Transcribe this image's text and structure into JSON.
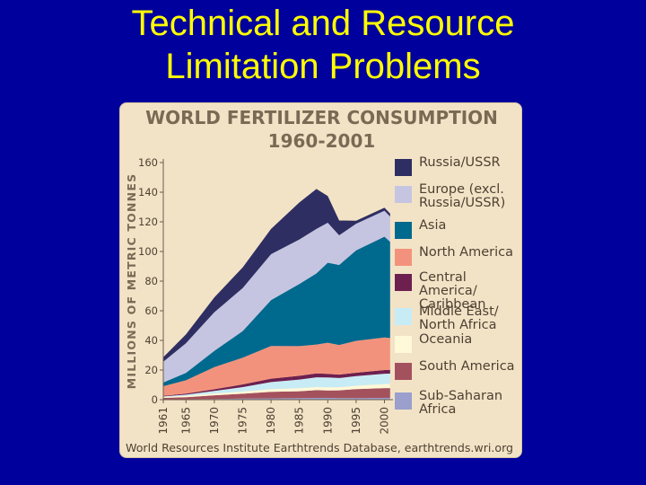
{
  "slide": {
    "title_line1": "Technical and Resource",
    "title_line2": "Limitation Problems"
  },
  "figure": {
    "source": "World Resources Institute Earthtrends Database, earthtrends.wri.org"
  },
  "chart_data": {
    "type": "area",
    "stacked": true,
    "title": "WORLD FERTILIZER CONSUMPTION",
    "subtitle": "1960-2001",
    "xlabel": "",
    "ylabel": "MILLIONS OF METRIC TONNES",
    "ylim": [
      0,
      160
    ],
    "yticks": [
      0,
      20,
      40,
      60,
      80,
      100,
      120,
      140,
      160
    ],
    "xticks": [
      1961,
      1965,
      1970,
      1975,
      1980,
      1985,
      1990,
      1995,
      2000
    ],
    "x": [
      1961,
      1965,
      1970,
      1975,
      1980,
      1985,
      1988,
      1990,
      1992,
      1995,
      2000,
      2001
    ],
    "series": [
      {
        "name": "Sub-Saharan Africa",
        "color": "#9a9fcd",
        "values": [
          0.2,
          0.3,
          0.5,
          0.7,
          0.9,
          1.1,
          1.2,
          1.2,
          1.1,
          1.1,
          1.2,
          1.2
        ]
      },
      {
        "name": "South America",
        "color": "#a4515e",
        "values": [
          1.0,
          1.4,
          2.5,
          3.3,
          4.4,
          4.6,
          5.2,
          5.0,
          5.2,
          6.0,
          6.6,
          6.6
        ]
      },
      {
        "name": "Oceania",
        "color": "#fff9d8",
        "values": [
          0.6,
          0.9,
          1.2,
          1.5,
          1.8,
          2.0,
          2.1,
          2.1,
          2.0,
          2.3,
          2.8,
          2.8
        ]
      },
      {
        "name": "Middle East/ North Africa",
        "color": "#c8ecf6",
        "values": [
          0.4,
          0.8,
          1.7,
          3.0,
          4.8,
          5.9,
          6.6,
          6.7,
          6.3,
          6.5,
          6.9,
          7.0
        ]
      },
      {
        "name": "Central America/ Caribbean",
        "color": "#6d1f4f",
        "values": [
          0.4,
          0.7,
          1.1,
          1.8,
          2.3,
          2.5,
          2.6,
          2.4,
          2.3,
          2.3,
          2.5,
          2.5
        ]
      },
      {
        "name": "North America",
        "color": "#f3927c",
        "values": [
          6.5,
          9.0,
          15.0,
          18.0,
          22.0,
          20.0,
          19.5,
          21.0,
          20.0,
          21.5,
          22.0,
          21.5
        ]
      },
      {
        "name": "Asia",
        "color": "#00698e",
        "values": [
          2.5,
          5.0,
          11.0,
          18.0,
          31.0,
          42.0,
          48.0,
          54.0,
          54.0,
          61.0,
          68.0,
          65.0
        ]
      },
      {
        "name": "Europe (excl. Russia/USSR)",
        "color": "#c6c5e1",
        "values": [
          14.0,
          20.0,
          26.0,
          29.0,
          31.0,
          30.0,
          30.0,
          27.0,
          20.0,
          18.0,
          17.5,
          17.0
        ]
      },
      {
        "name": "Russia/USSR",
        "color": "#2e2e63",
        "values": [
          3.0,
          6.0,
          10.0,
          14.0,
          17.0,
          25.0,
          27.0,
          18.0,
          10.0,
          2.0,
          2.0,
          2.0
        ]
      }
    ],
    "legend": [
      "Russia/USSR",
      "Europe (excl. Russia/USSR)",
      "Asia",
      "North America",
      "Central America/ Caribbean",
      "Middle East/ North Africa",
      "Oceania",
      "South America",
      "Sub-Saharan Africa"
    ],
    "legend_lines": [
      [
        "Russia/USSR"
      ],
      [
        "Europe (excl.",
        "Russia/USSR)"
      ],
      [
        "Asia"
      ],
      [
        "North America"
      ],
      [
        "Central America/",
        "Caribbean"
      ],
      [
        "Middle East/",
        "North Africa"
      ],
      [
        "Oceania"
      ],
      [
        "South America"
      ],
      [
        "Sub-Saharan",
        "Africa"
      ]
    ],
    "legend_colors": [
      "#2e2e63",
      "#c6c5e1",
      "#00698e",
      "#f3927c",
      "#6d1f4f",
      "#c8ecf6",
      "#fff9d8",
      "#a4515e",
      "#9a9fcd"
    ]
  }
}
